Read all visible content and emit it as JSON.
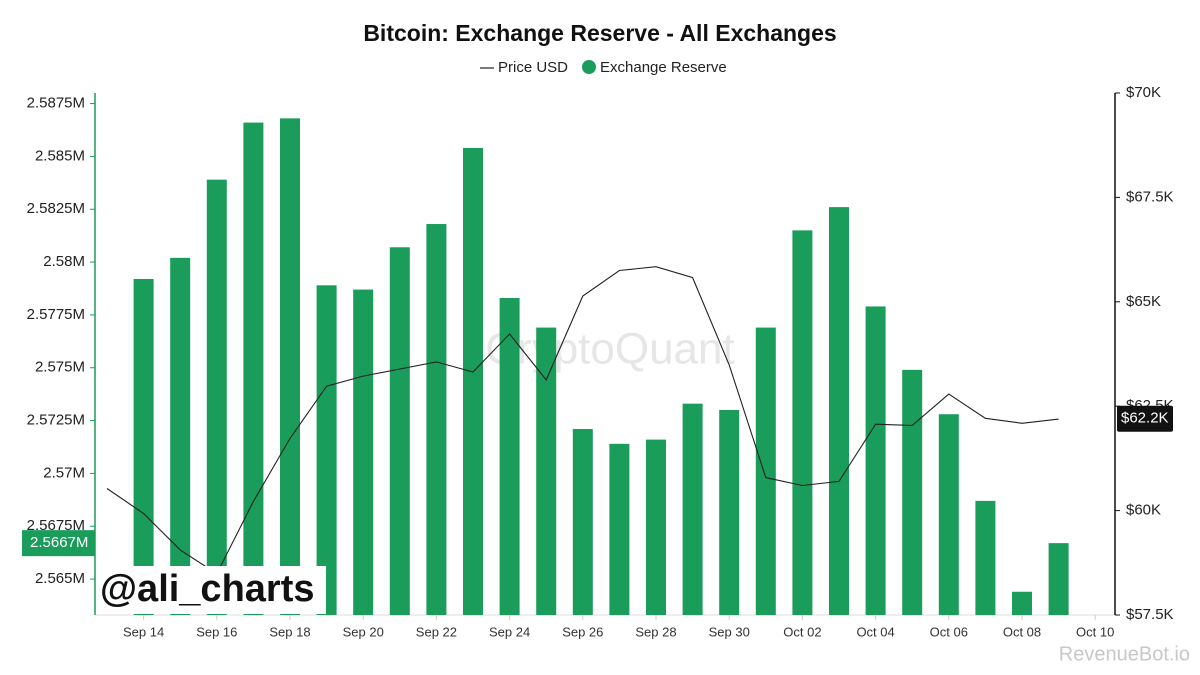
{
  "chart_data": {
    "type": "bar_line",
    "title": "Bitcoin: Exchange Reserve - All Exchanges",
    "categories": [
      null,
      "Sep 14",
      null,
      "Sep 16",
      null,
      "Sep 18",
      null,
      "Sep 20",
      null,
      "Sep 22",
      null,
      "Sep 24",
      null,
      "Sep 26",
      null,
      "Sep 28",
      null,
      "Sep 30",
      null,
      "Oct 02",
      null,
      "Oct 04",
      null,
      "Oct 06",
      null,
      "Oct 08",
      null,
      "Oct 10"
    ],
    "series": [
      {
        "name": "Price USD",
        "type": "line",
        "axis": "y2",
        "color": "#222222",
        "values": [
          60.53,
          59.93,
          59.06,
          58.49,
          60.22,
          61.73,
          62.98,
          63.22,
          63.39,
          63.56,
          63.32,
          64.23,
          63.13,
          65.14,
          65.75,
          65.84,
          65.58,
          63.49,
          60.79,
          60.6,
          60.7,
          62.07,
          62.04,
          62.79,
          62.21,
          62.09,
          62.19,
          null
        ]
      },
      {
        "name": "Exchange Reserve",
        "type": "bar",
        "axis": "y",
        "color": "#1a9c5b",
        "values": [
          null,
          2.5792,
          2.5802,
          2.5839,
          2.5866,
          2.5868,
          2.5789,
          2.5787,
          2.5807,
          2.5818,
          2.5854,
          2.5783,
          2.5769,
          2.5721,
          2.5714,
          2.5716,
          2.5733,
          2.573,
          2.5769,
          2.5815,
          2.5826,
          2.5779,
          2.5749,
          2.5728,
          2.5687,
          2.5644,
          2.5667,
          null
        ]
      }
    ],
    "ylim": [
      2.5633,
      2.588
    ],
    "yticks": [
      {
        "value": 2.565,
        "label": "2.565M"
      },
      {
        "value": 2.5675,
        "label": "2.5675M"
      },
      {
        "value": 2.57,
        "label": "2.57M"
      },
      {
        "value": 2.5725,
        "label": "2.5725M"
      },
      {
        "value": 2.575,
        "label": "2.575M"
      },
      {
        "value": 2.5775,
        "label": "2.5775M"
      },
      {
        "value": 2.58,
        "label": "2.58M"
      },
      {
        "value": 2.5825,
        "label": "2.5825M"
      },
      {
        "value": 2.585,
        "label": "2.585M"
      },
      {
        "value": 2.5875,
        "label": "2.5875M"
      }
    ],
    "y2lim": [
      57.5,
      70
    ],
    "y2ticks": [
      {
        "value": 57.5,
        "label": "$57.5K"
      },
      {
        "value": 60,
        "label": "$60K"
      },
      {
        "value": 62.5,
        "label": "$62.5K"
      },
      {
        "value": 65,
        "label": "$65K"
      },
      {
        "value": 67.5,
        "label": "$67.5K"
      },
      {
        "value": 70,
        "label": "$70K"
      }
    ],
    "current_labels": {
      "y": {
        "value": 2.5667,
        "label": "2.5667M"
      },
      "y2": {
        "value": 62.2,
        "label": "$62.2K"
      }
    },
    "watermarks": [
      "CryptoQuant",
      "@ali_charts",
      "RevenueBot.io"
    ],
    "grid": false
  }
}
